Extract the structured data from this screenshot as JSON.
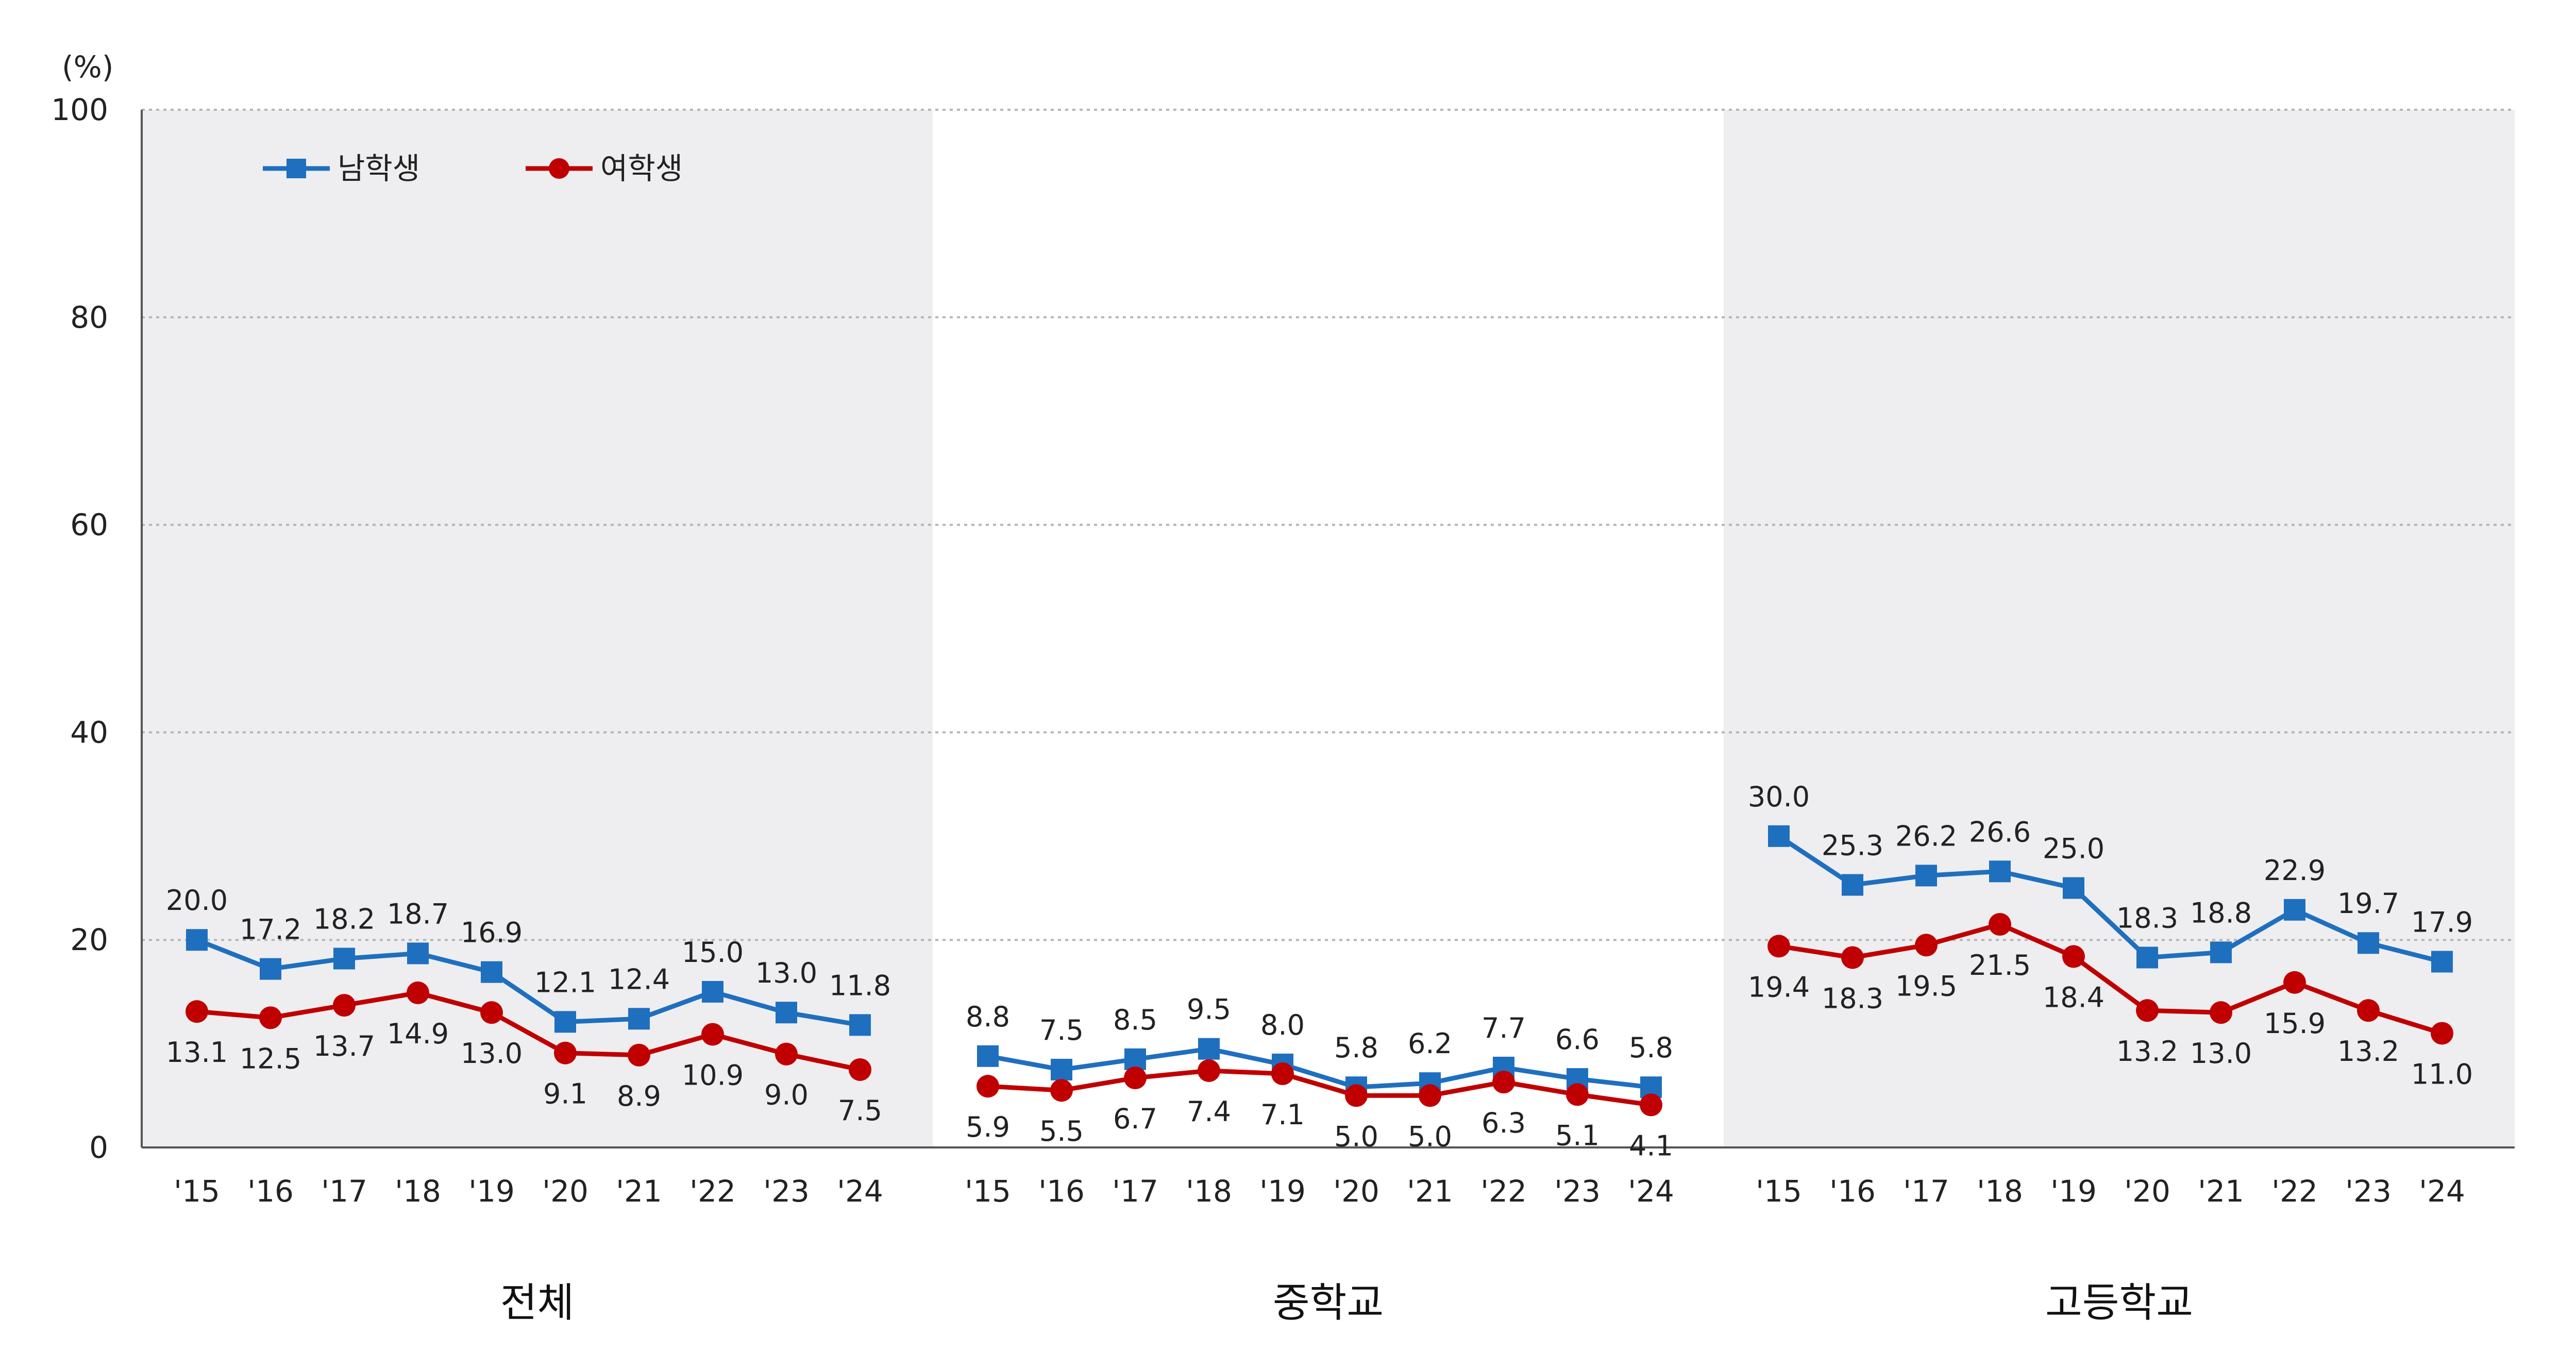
{
  "chart_data": {
    "type": "line",
    "unit_label": "(%)",
    "ylim": [
      0,
      100
    ],
    "yticks": [
      "0",
      "20",
      "40",
      "60",
      "80",
      "100"
    ],
    "grid": true,
    "legend_position": "top-left",
    "categories": [
      "'15",
      "'16",
      "'17",
      "'18",
      "'19",
      "'20",
      "'21",
      "'22",
      "'23",
      "'24"
    ],
    "series_meta": [
      {
        "name": "남학생",
        "color": "#1f6fbf",
        "marker": "square"
      },
      {
        "name": "여학생",
        "color": "#c00000",
        "marker": "circle"
      }
    ],
    "panels": [
      {
        "title": "전체",
        "shaded": true,
        "series": [
          {
            "name": "남학생",
            "values": [
              20.0,
              17.2,
              18.2,
              18.7,
              16.9,
              12.1,
              12.4,
              15.0,
              13.0,
              11.8
            ],
            "labels": [
              "20.0",
              "17.2",
              "18.2",
              "18.7",
              "16.9",
              "12.1",
              "12.4",
              "15.0",
              "13.0",
              "11.8"
            ]
          },
          {
            "name": "여학생",
            "values": [
              13.1,
              12.5,
              13.7,
              14.9,
              13.0,
              9.1,
              8.9,
              10.9,
              9.0,
              7.5
            ],
            "labels": [
              "13.1",
              "12.5",
              "13.7",
              "14.9",
              "13.0",
              "9.1",
              "8.9",
              "10.9",
              "9.0",
              "7.5"
            ]
          }
        ]
      },
      {
        "title": "중학교",
        "shaded": false,
        "series": [
          {
            "name": "남학생",
            "values": [
              8.8,
              7.5,
              8.5,
              9.5,
              8.0,
              5.8,
              6.2,
              7.7,
              6.6,
              5.8
            ],
            "labels": [
              "8.8",
              "7.5",
              "8.5",
              "9.5",
              "8.0",
              "5.8",
              "6.2",
              "7.7",
              "6.6",
              "5.8"
            ]
          },
          {
            "name": "여학생",
            "values": [
              5.9,
              5.5,
              6.7,
              7.4,
              7.1,
              5.0,
              5.0,
              6.3,
              5.1,
              4.1
            ],
            "labels": [
              "5.9",
              "5.5",
              "6.7",
              "7.4",
              "7.1",
              "5.0",
              "5.0",
              "6.3",
              "5.1",
              "4.1"
            ]
          }
        ]
      },
      {
        "title": "고등학교",
        "shaded": true,
        "series": [
          {
            "name": "남학생",
            "values": [
              30.0,
              25.3,
              26.2,
              26.6,
              25.0,
              18.3,
              18.8,
              22.9,
              19.7,
              17.9
            ],
            "labels": [
              "30.0",
              "25.3",
              "26.2",
              "26.6",
              "25.0",
              "18.3",
              "18.8",
              "22.9",
              "19.7",
              "17.9"
            ]
          },
          {
            "name": "여학생",
            "values": [
              19.4,
              18.3,
              19.5,
              21.5,
              18.4,
              13.2,
              13.0,
              15.9,
              13.2,
              11.0
            ],
            "labels": [
              "19.4",
              "18.3",
              "19.5",
              "21.5",
              "18.4",
              "13.2",
              "13.0",
              "15.9",
              "13.2",
              "11.0"
            ]
          }
        ]
      }
    ]
  }
}
